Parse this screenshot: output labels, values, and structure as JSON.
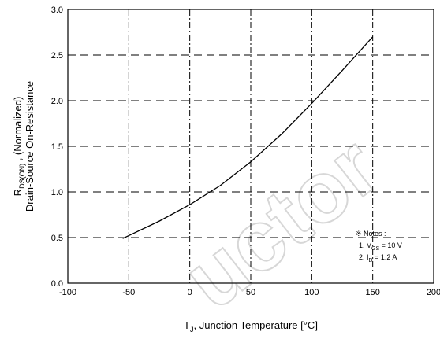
{
  "chart_data": {
    "type": "line",
    "xlabel_main": "T",
    "xlabel_sub": "J",
    "xlabel_rest": ", Junction Temperature [",
    "xlabel_unit": "°C]",
    "ylabel_line1_main": "R",
    "ylabel_line1_sub": "DS(ON)",
    "ylabel_line1_rest": " , (Normalized)",
    "ylabel_line2": "Drain-Source On-Resistance",
    "xlim": [
      -100,
      200
    ],
    "ylim": [
      0.0,
      3.0
    ],
    "x_ticks": [
      "-100",
      "-50",
      "0",
      "50",
      "100",
      "150",
      "200"
    ],
    "y_ticks": [
      "0.0",
      "0.5",
      "1.0",
      "1.5",
      "2.0",
      "2.5",
      "3.0"
    ],
    "grid": true,
    "series": [
      {
        "x": [
          -55,
          -25,
          0,
          25,
          50,
          75,
          100,
          125,
          150
        ],
        "values": [
          0.49,
          0.68,
          0.86,
          1.07,
          1.33,
          1.63,
          1.97,
          2.33,
          2.7
        ]
      }
    ],
    "notes": {
      "header": "※ Notes :",
      "line1_pre": "1. V",
      "line1_sub": "GS",
      "line1_post": " = 10 V",
      "line2_pre": "2. I",
      "line2_sub": "D",
      "line2_post": " = 1.2 A"
    },
    "watermark": "uctor"
  }
}
